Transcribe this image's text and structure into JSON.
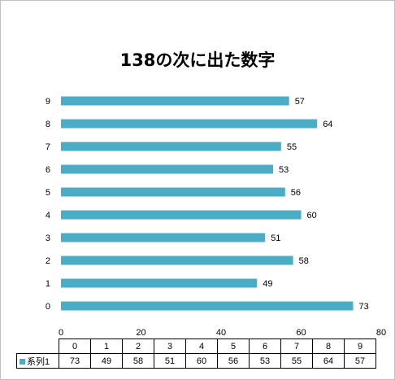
{
  "chart_data": {
    "type": "bar",
    "orientation": "horizontal",
    "title": "138の次に出た数字",
    "categories": [
      "0",
      "1",
      "2",
      "3",
      "4",
      "5",
      "6",
      "7",
      "8",
      "9"
    ],
    "series": [
      {
        "name": "系列1",
        "values": [
          73,
          49,
          58,
          51,
          60,
          56,
          53,
          55,
          64,
          57
        ]
      }
    ],
    "xlim": [
      0,
      80
    ],
    "x_ticks": [
      "0",
      "20",
      "40",
      "60",
      "80"
    ],
    "data_labels": true,
    "grid": false,
    "legend": "data-table",
    "bar_color": "#4bacc6"
  }
}
